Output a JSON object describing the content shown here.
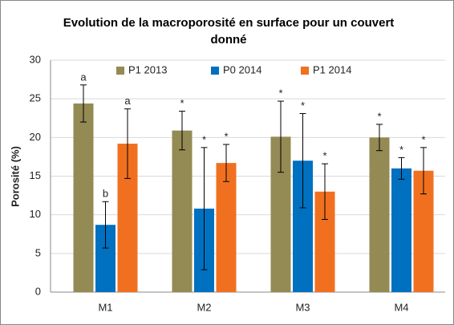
{
  "chart_data": {
    "type": "bar",
    "title": "Evolution de la macroporosité en surface pour un couvert donné",
    "y_label": "Porosité (%)",
    "categories": [
      "M1",
      "M2",
      "M3",
      "M4"
    ],
    "series": [
      {
        "name": "P1 2013",
        "color": "#948a54",
        "values": [
          24.4,
          20.9,
          20.1,
          20.0
        ],
        "errors": [
          2.4,
          2.5,
          4.6,
          1.7
        ],
        "labels": [
          "a",
          "*",
          "*",
          "*"
        ]
      },
      {
        "name": "P0 2014",
        "color": "#0070c0",
        "values": [
          8.7,
          10.8,
          17.0,
          16.0
        ],
        "errors": [
          3.0,
          7.9,
          6.1,
          1.4
        ],
        "labels": [
          "b",
          "*",
          "*",
          "*"
        ]
      },
      {
        "name": "P1 2014",
        "color": "#f07020",
        "values": [
          19.2,
          16.7,
          13.0,
          15.7
        ],
        "errors": [
          4.5,
          2.4,
          3.6,
          3.0
        ],
        "labels": [
          "a",
          "*",
          "*",
          "*"
        ]
      }
    ],
    "ylim": [
      0,
      30
    ],
    "yticks": [
      0,
      5,
      10,
      15,
      20,
      25,
      30
    ],
    "grid": true,
    "legend": "top"
  }
}
